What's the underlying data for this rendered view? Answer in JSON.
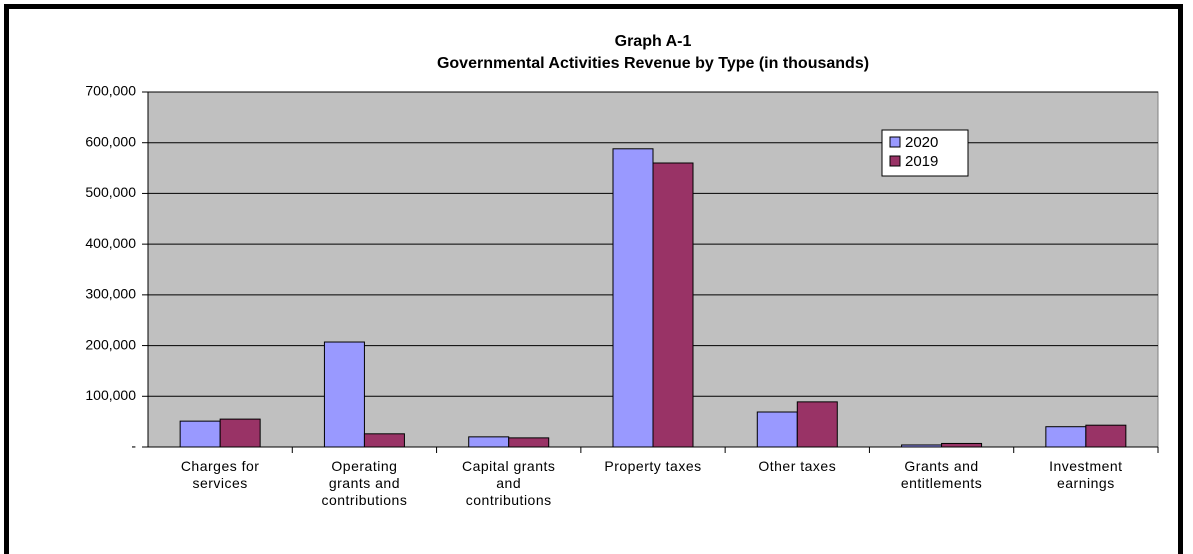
{
  "chart_data": {
    "type": "bar",
    "title": "Graph A-1",
    "subtitle": "Governmental Activities Revenue by Type (in thousands)",
    "categories": [
      "Charges for services",
      "Operating grants and contributions",
      "Capital grants and contributions",
      "Property taxes",
      "Other taxes",
      "Grants and entitlements",
      "Investment earnings"
    ],
    "series": [
      {
        "name": "2020",
        "color": "#9999ff",
        "values": [
          51000,
          207000,
          20000,
          588000,
          69000,
          4000,
          40000
        ]
      },
      {
        "name": "2019",
        "color": "#993366",
        "values": [
          55000,
          26000,
          18000,
          560000,
          89000,
          7000,
          43000
        ]
      }
    ],
    "ylim": [
      0,
      700000
    ],
    "yticks": [
      {
        "value": 0,
        "label": "-"
      },
      {
        "value": 100000,
        "label": "100,000"
      },
      {
        "value": 200000,
        "label": "200,000"
      },
      {
        "value": 300000,
        "label": "300,000"
      },
      {
        "value": 400000,
        "label": "400,000"
      },
      {
        "value": 500000,
        "label": "500,000"
      },
      {
        "value": 600000,
        "label": "600,000"
      },
      {
        "value": 700000,
        "label": "700,000"
      }
    ],
    "grid": true,
    "legend": "upper right"
  }
}
